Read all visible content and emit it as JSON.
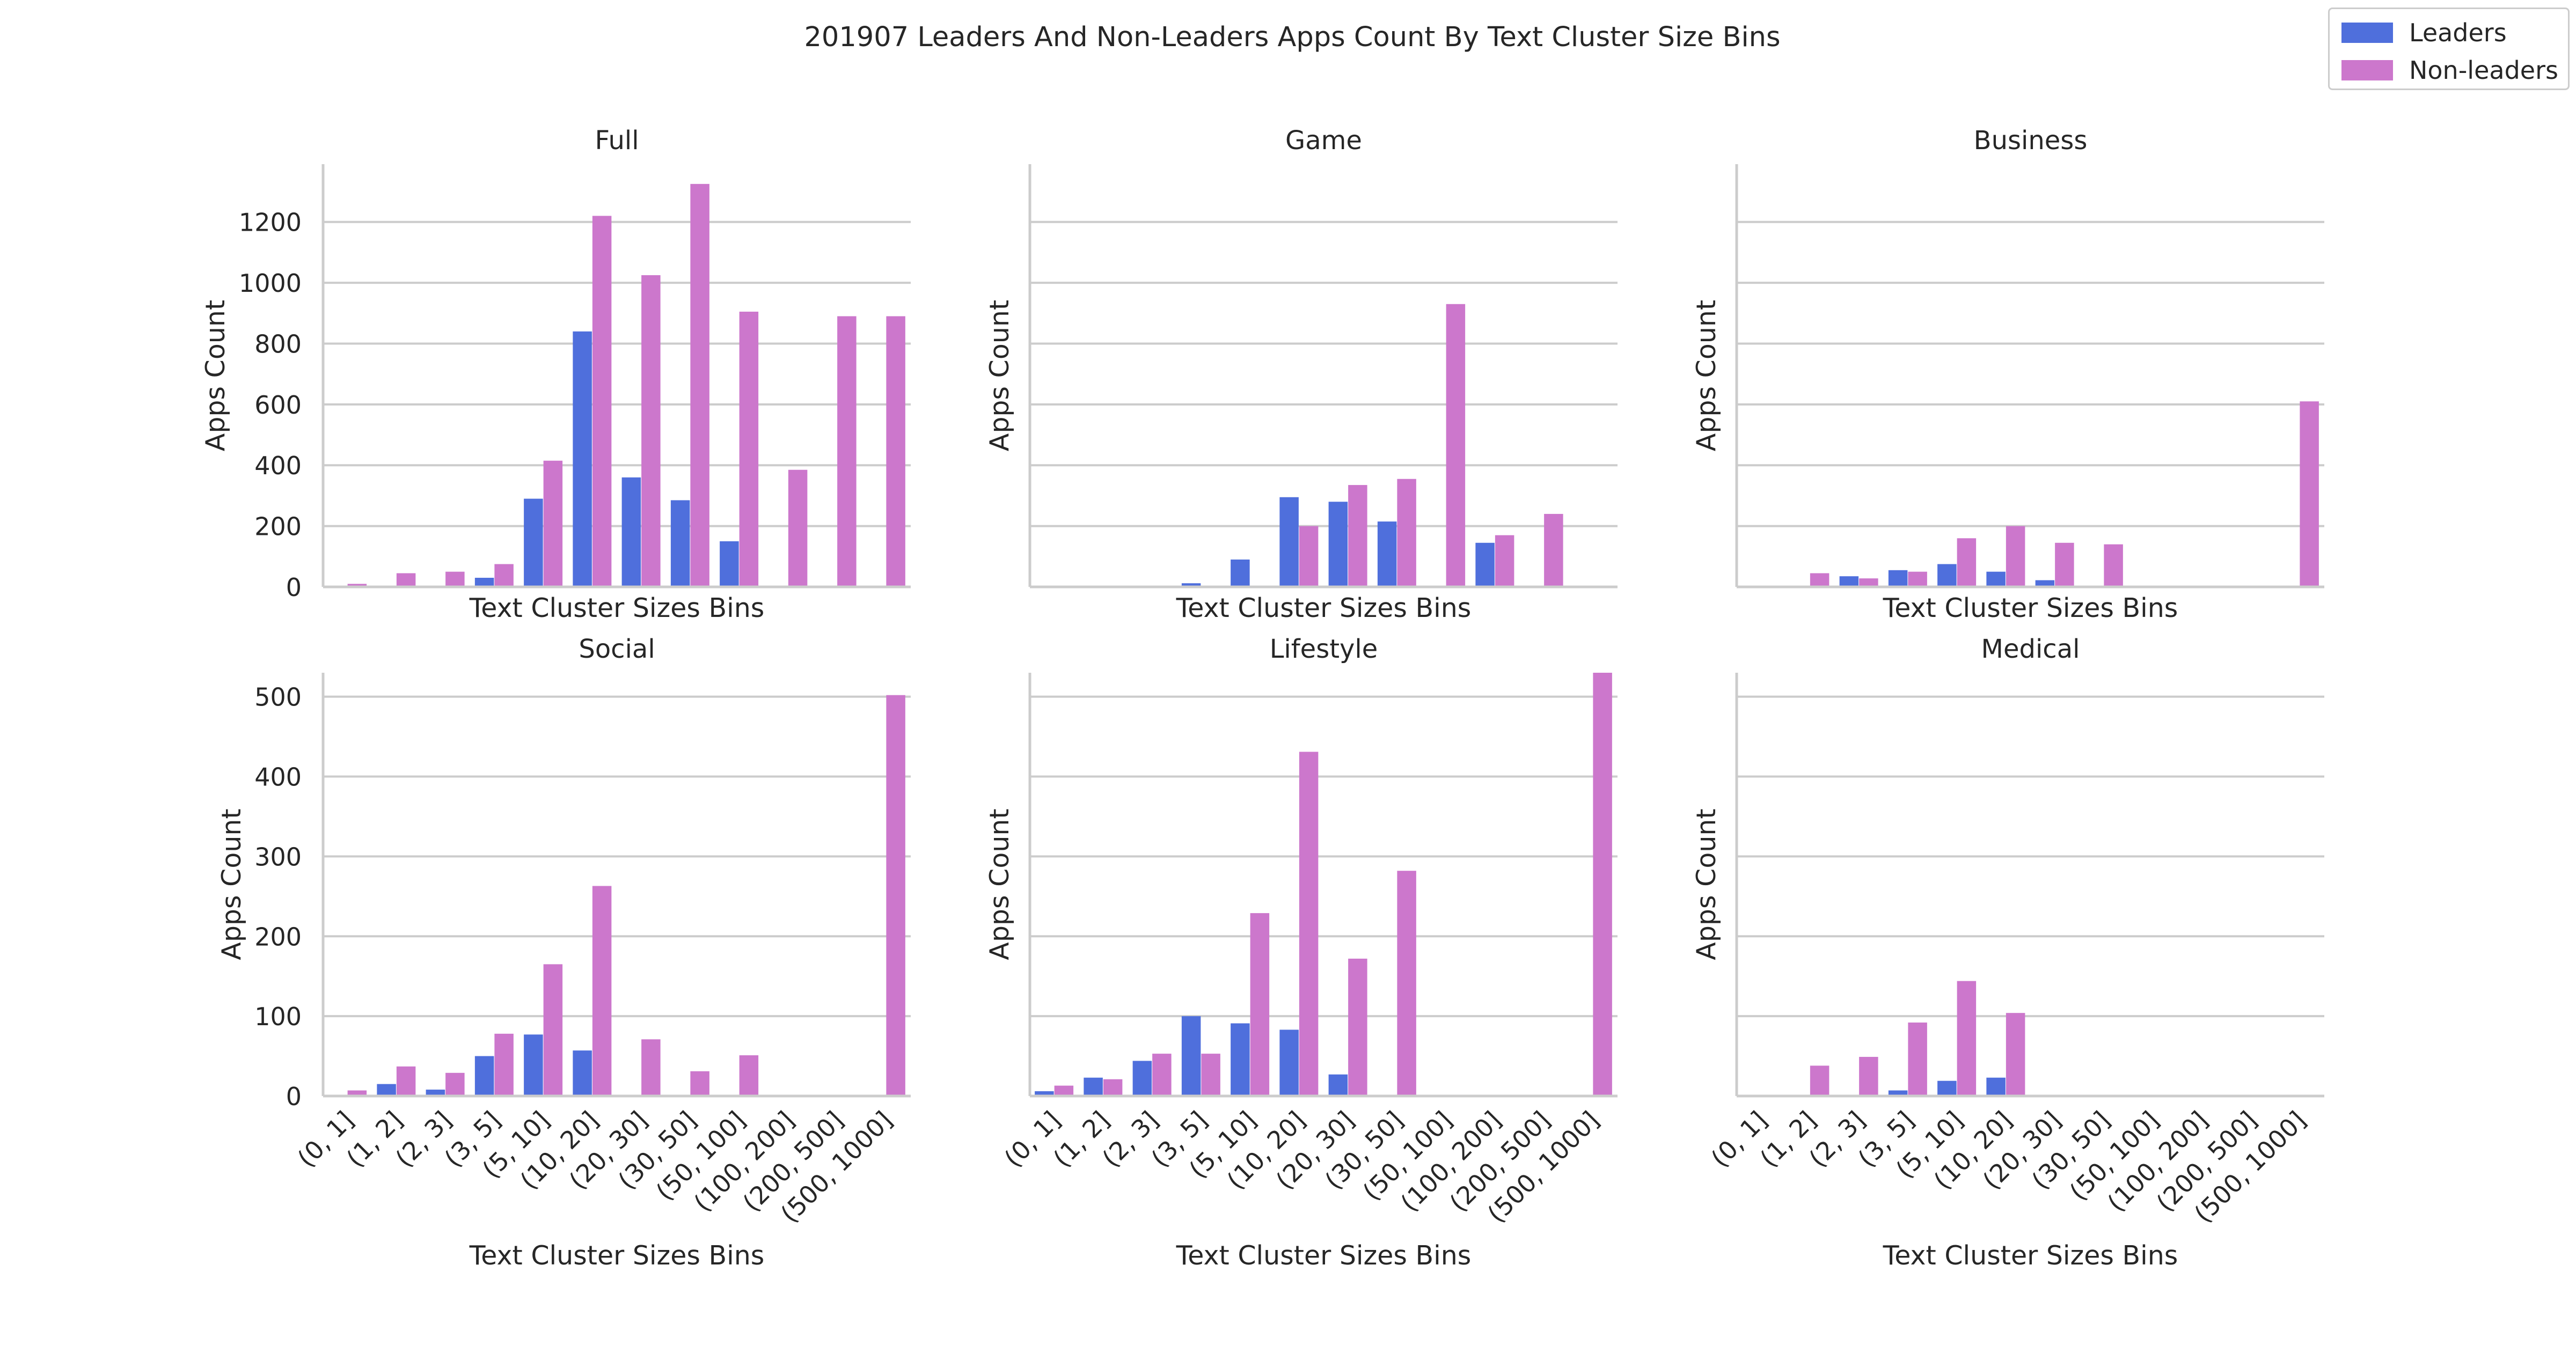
{
  "title": "201907 Leaders And Non-Leaders Apps Count By Text Cluster Size Bins",
  "legend": {
    "leaders_label": "Leaders",
    "nonleaders_label": "Non-leaders",
    "leaders_color": "#4f6fdc",
    "nonleaders_color": "#cc77cc"
  },
  "chart_data": [
    {
      "type": "bar",
      "title": "Full",
      "xlabel": "Text Cluster Sizes Bins",
      "ylabel": "Apps Count",
      "categories": [
        "(0, 1]",
        "(1, 2]",
        "(2, 3]",
        "(3, 5]",
        "(5, 10]",
        "(10, 20]",
        "(20, 30]",
        "(30, 50]",
        "(50, 100]",
        "(100, 200]",
        "(200, 500]",
        "(500, 1000]"
      ],
      "ylim": [
        0,
        1390
      ],
      "yticks": [
        0,
        200,
        400,
        600,
        800,
        1000,
        1200
      ],
      "series": [
        {
          "name": "Leaders",
          "values": [
            0,
            0,
            0,
            30,
            290,
            840,
            360,
            285,
            150,
            0,
            0,
            0
          ]
        },
        {
          "name": "Non-leaders",
          "values": [
            10,
            45,
            50,
            75,
            415,
            1220,
            1025,
            1325,
            905,
            385,
            890,
            890
          ]
        }
      ]
    },
    {
      "type": "bar",
      "title": "Game",
      "xlabel": "Text Cluster Sizes Bins",
      "ylabel": "Apps Count",
      "categories": [
        "(0, 1]",
        "(1, 2]",
        "(2, 3]",
        "(3, 5]",
        "(5, 10]",
        "(10, 20]",
        "(20, 30]",
        "(30, 50]",
        "(50, 100]",
        "(100, 200]",
        "(200, 500]",
        "(500, 1000]"
      ],
      "ylim": [
        0,
        1390
      ],
      "series": [
        {
          "name": "Leaders",
          "values": [
            0,
            0,
            0,
            12,
            90,
            295,
            280,
            215,
            0,
            145,
            0,
            0
          ]
        },
        {
          "name": "Non-leaders",
          "values": [
            0,
            0,
            0,
            0,
            0,
            200,
            335,
            355,
            930,
            170,
            240,
            0
          ]
        }
      ]
    },
    {
      "type": "bar",
      "title": "Business",
      "xlabel": "Text Cluster Sizes Bins",
      "ylabel": "Apps Count",
      "categories": [
        "(0, 1]",
        "(1, 2]",
        "(2, 3]",
        "(3, 5]",
        "(5, 10]",
        "(10, 20]",
        "(20, 30]",
        "(30, 50]",
        "(50, 100]",
        "(100, 200]",
        "(200, 500]",
        "(500, 1000]"
      ],
      "ylim": [
        0,
        1390
      ],
      "series": [
        {
          "name": "Leaders",
          "values": [
            0,
            3,
            35,
            55,
            75,
            50,
            22,
            0,
            0,
            0,
            0,
            0
          ]
        },
        {
          "name": "Non-leaders",
          "values": [
            0,
            45,
            28,
            50,
            160,
            200,
            145,
            140,
            0,
            0,
            0,
            610
          ]
        }
      ]
    },
    {
      "type": "bar",
      "title": "Social",
      "xlabel": "Text Cluster Sizes Bins",
      "ylabel": "Apps Count",
      "categories": [
        "(0, 1]",
        "(1, 2]",
        "(2, 3]",
        "(3, 5]",
        "(5, 10]",
        "(10, 20]",
        "(20, 30]",
        "(30, 50]",
        "(50, 100]",
        "(100, 200]",
        "(200, 500]",
        "(500, 1000]"
      ],
      "ylim": [
        0,
        530
      ],
      "yticks": [
        0,
        100,
        200,
        300,
        400,
        500
      ],
      "series": [
        {
          "name": "Leaders",
          "values": [
            0,
            15,
            8,
            50,
            77,
            57,
            0,
            0,
            0,
            0,
            0,
            0
          ]
        },
        {
          "name": "Non-leaders",
          "values": [
            7,
            37,
            29,
            78,
            165,
            263,
            71,
            31,
            51,
            0,
            0,
            502
          ]
        }
      ]
    },
    {
      "type": "bar",
      "title": "Lifestyle",
      "xlabel": "Text Cluster Sizes Bins",
      "ylabel": "Apps Count",
      "categories": [
        "(0, 1]",
        "(1, 2]",
        "(2, 3]",
        "(3, 5]",
        "(5, 10]",
        "(10, 20]",
        "(20, 30]",
        "(30, 50]",
        "(50, 100]",
        "(100, 200]",
        "(200, 500]",
        "(500, 1000]"
      ],
      "ylim": [
        0,
        530
      ],
      "series": [
        {
          "name": "Leaders",
          "values": [
            6,
            23,
            44,
            100,
            91,
            83,
            27,
            0,
            0,
            0,
            0,
            0
          ]
        },
        {
          "name": "Non-leaders",
          "values": [
            13,
            21,
            53,
            53,
            229,
            431,
            172,
            282,
            0,
            0,
            0,
            530
          ]
        }
      ]
    },
    {
      "type": "bar",
      "title": "Medical",
      "xlabel": "Text Cluster Sizes Bins",
      "ylabel": "Apps Count",
      "categories": [
        "(0, 1]",
        "(1, 2]",
        "(2, 3]",
        "(3, 5]",
        "(5, 10]",
        "(10, 20]",
        "(20, 30]",
        "(30, 50]",
        "(50, 100]",
        "(100, 200]",
        "(200, 500]",
        "(500, 1000]"
      ],
      "ylim": [
        0,
        530
      ],
      "series": [
        {
          "name": "Leaders",
          "values": [
            0,
            0,
            0,
            7,
            19,
            23,
            0,
            0,
            0,
            0,
            0,
            0
          ]
        },
        {
          "name": "Non-leaders",
          "values": [
            0,
            38,
            49,
            92,
            144,
            104,
            0,
            0,
            0,
            0,
            0,
            0
          ]
        }
      ]
    }
  ]
}
